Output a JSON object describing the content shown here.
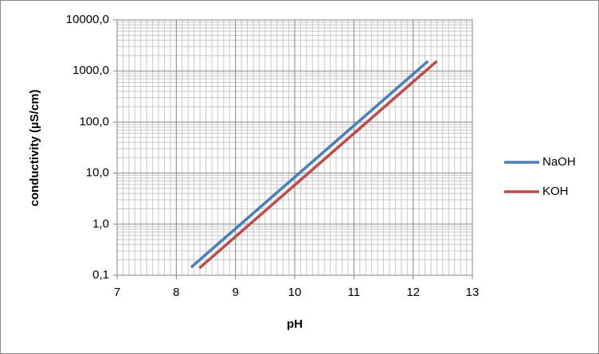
{
  "chart_data": {
    "type": "line",
    "x_label": "pH",
    "y_label": "conductivity (µS/cm)",
    "series": [
      {
        "name": "NaOH",
        "color": "#4a7ebb",
        "x": [
          8.25,
          12.25
        ],
        "values": [
          0.143,
          1550
        ]
      },
      {
        "name": "KOH",
        "color": "#be4b48",
        "x": [
          8.39,
          12.4
        ],
        "values": [
          0.138,
          1550
        ]
      }
    ],
    "xlim": [
      7,
      13
    ],
    "xticks": [
      7,
      8,
      9,
      10,
      11,
      12,
      13
    ],
    "ylim": [
      0.1,
      10000
    ],
    "yscale": "log",
    "yticks": [
      {
        "value": 0.1,
        "label": "0,1"
      },
      {
        "value": 1,
        "label": "1,0"
      },
      {
        "value": 10,
        "label": "10,0"
      },
      {
        "value": 100,
        "label": "100,0"
      },
      {
        "value": 1000,
        "label": "1000,0"
      },
      {
        "value": 10000,
        "label": "10000,0"
      }
    ],
    "grid": true,
    "minor_grid": true,
    "legend": "right"
  }
}
